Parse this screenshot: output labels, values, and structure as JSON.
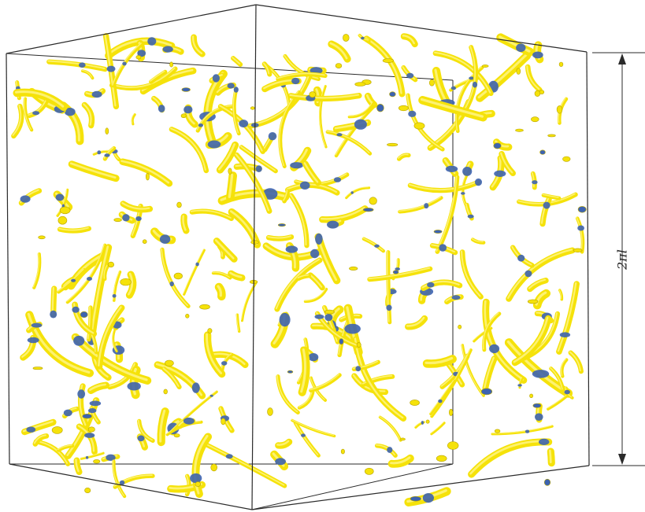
{
  "dimension": {
    "label": "2πl"
  },
  "colors": {
    "vortex_primary": "#f5e20a",
    "vortex_shadow": "#b8a400",
    "vortex_highlight": "#fff68a",
    "contact_patch": "#3d63b0",
    "box_edge": "#2a2a2a",
    "background": "#ffffff"
  }
}
